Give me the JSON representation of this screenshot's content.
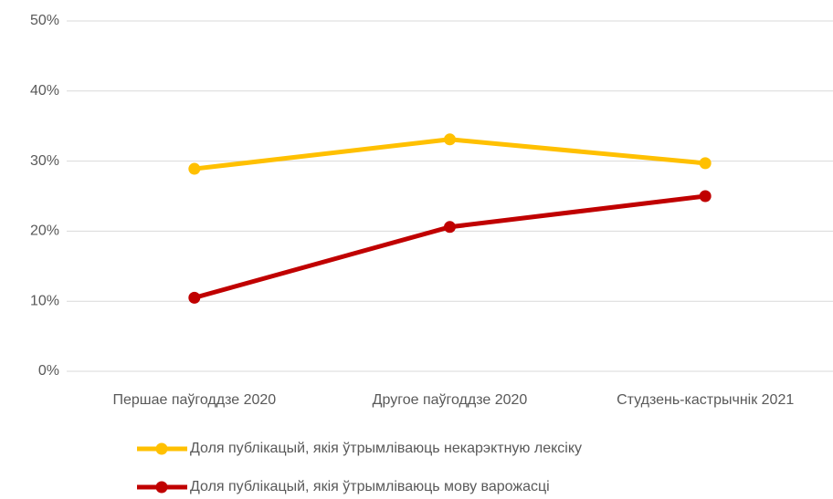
{
  "chart_data": {
    "type": "line",
    "categories": [
      "Першае паўгоддзе 2020",
      "Другое паўгоддзе 2020",
      "Студзень-кастрычнік 2021"
    ],
    "series": [
      {
        "name": "Доля публікацый, якія ўтрымліваюць некарэктную лексіку",
        "color": "#FFC000",
        "values": [
          28.9,
          33.1,
          29.7
        ]
      },
      {
        "name": "Доля публікацый, якія ўтрымліваюць мову варожасці",
        "color": "#C00000",
        "values": [
          10.5,
          20.6,
          25.0
        ]
      }
    ],
    "ylim": [
      0,
      50
    ],
    "yticks": [
      {
        "value": 0,
        "label": "0%"
      },
      {
        "value": 10,
        "label": "10%"
      },
      {
        "value": 20,
        "label": "20%"
      },
      {
        "value": 30,
        "label": "30%"
      },
      {
        "value": 40,
        "label": "40%"
      },
      {
        "value": 50,
        "label": "50%"
      }
    ],
    "grid": true,
    "legend": "bottom"
  }
}
